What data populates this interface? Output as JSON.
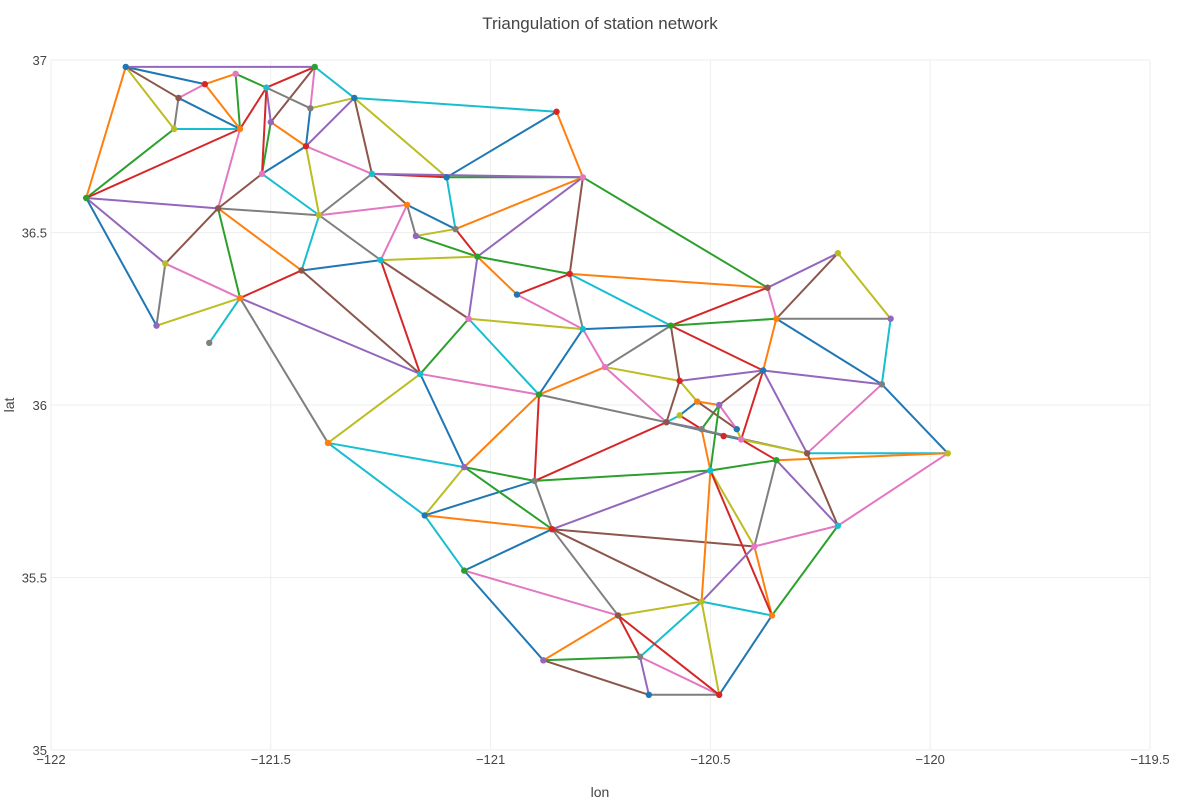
{
  "chart_data": {
    "type": "scatter",
    "title": "Triangulation of station network",
    "xlabel": "lon",
    "ylabel": "lat",
    "xlim": [
      -122,
      -119.5
    ],
    "ylim": [
      35,
      37
    ],
    "xticks": [
      -122,
      -121.5,
      -121,
      -120.5,
      -120,
      -119.5
    ],
    "yticks": [
      35,
      35.5,
      36,
      36.5,
      37
    ],
    "xtick_labels": [
      "−122",
      "−121.5",
      "−121",
      "−120.5",
      "−120",
      "−119.5"
    ],
    "ytick_labels": [
      "35",
      "35.5",
      "36",
      "36.5",
      "37"
    ],
    "grid": true,
    "legend": "none",
    "colors": [
      "#1f77b4",
      "#ff7f0e",
      "#2ca02c",
      "#d62728",
      "#9467bd",
      "#8c564b",
      "#e377c2",
      "#7f7f7f",
      "#bcbd22",
      "#17becf"
    ],
    "stations": [
      [
        -121.83,
        36.98
      ],
      [
        -121.65,
        36.93
      ],
      [
        -121.58,
        36.96
      ],
      [
        -121.51,
        36.92
      ],
      [
        -121.4,
        36.98
      ],
      [
        -121.71,
        36.89
      ],
      [
        -121.72,
        36.8
      ],
      [
        -121.57,
        36.8
      ],
      [
        -121.5,
        36.82
      ],
      [
        -121.41,
        36.86
      ],
      [
        -121.31,
        36.89
      ],
      [
        -121.42,
        36.75
      ],
      [
        -121.52,
        36.67
      ],
      [
        -121.27,
        36.67
      ],
      [
        -121.92,
        36.6
      ],
      [
        -121.62,
        36.57
      ],
      [
        -121.39,
        36.55
      ],
      [
        -121.19,
        36.58
      ],
      [
        -121.17,
        36.49
      ],
      [
        -121.08,
        36.51
      ],
      [
        -121.1,
        36.66
      ],
      [
        -120.85,
        36.85
      ],
      [
        -120.79,
        36.66
      ],
      [
        -121.25,
        36.42
      ],
      [
        -121.03,
        36.43
      ],
      [
        -121.43,
        36.39
      ],
      [
        -121.74,
        36.41
      ],
      [
        -121.57,
        36.31
      ],
      [
        -121.76,
        36.23
      ],
      [
        -121.64,
        36.18
      ],
      [
        -120.94,
        36.32
      ],
      [
        -120.82,
        36.38
      ],
      [
        -121.05,
        36.25
      ],
      [
        -120.79,
        36.22
      ],
      [
        -120.59,
        36.23
      ],
      [
        -120.37,
        36.34
      ],
      [
        -120.21,
        36.44
      ],
      [
        -120.35,
        36.25
      ],
      [
        -120.09,
        36.25
      ],
      [
        -120.11,
        36.06
      ],
      [
        -120.38,
        36.1
      ],
      [
        -120.57,
        36.07
      ],
      [
        -120.74,
        36.11
      ],
      [
        -121.16,
        36.09
      ],
      [
        -120.89,
        36.03
      ],
      [
        -120.6,
        35.95
      ],
      [
        -120.57,
        35.97
      ],
      [
        -120.53,
        36.01
      ],
      [
        -120.48,
        36.0
      ],
      [
        -120.52,
        35.93
      ],
      [
        -120.44,
        35.93
      ],
      [
        -120.47,
        35.91
      ],
      [
        -120.43,
        35.9
      ],
      [
        -120.5,
        35.81
      ],
      [
        -120.35,
        35.84
      ],
      [
        -120.28,
        35.86
      ],
      [
        -119.96,
        35.86
      ],
      [
        -121.37,
        35.89
      ],
      [
        -121.06,
        35.82
      ],
      [
        -120.9,
        35.78
      ],
      [
        -121.15,
        35.68
      ],
      [
        -120.86,
        35.64
      ],
      [
        -120.4,
        35.59
      ],
      [
        -120.21,
        35.65
      ],
      [
        -121.06,
        35.52
      ],
      [
        -120.71,
        35.39
      ],
      [
        -120.52,
        35.43
      ],
      [
        -120.36,
        35.39
      ],
      [
        -120.88,
        35.26
      ],
      [
        -120.66,
        35.27
      ],
      [
        -120.64,
        35.16
      ],
      [
        -120.48,
        35.16
      ]
    ],
    "edges": [
      [
        0,
        1
      ],
      [
        1,
        2
      ],
      [
        2,
        3
      ],
      [
        3,
        4
      ],
      [
        0,
        4
      ],
      [
        0,
        5
      ],
      [
        5,
        1
      ],
      [
        5,
        6
      ],
      [
        0,
        6
      ],
      [
        6,
        7
      ],
      [
        5,
        7
      ],
      [
        1,
        7
      ],
      [
        7,
        2
      ],
      [
        7,
        3
      ],
      [
        3,
        8
      ],
      [
        8,
        4
      ],
      [
        4,
        9
      ],
      [
        3,
        9
      ],
      [
        9,
        10
      ],
      [
        4,
        10
      ],
      [
        9,
        11
      ],
      [
        8,
        11
      ],
      [
        8,
        12
      ],
      [
        12,
        3
      ],
      [
        11,
        10
      ],
      [
        10,
        13
      ],
      [
        11,
        13
      ],
      [
        13,
        16
      ],
      [
        11,
        16
      ],
      [
        12,
        16
      ],
      [
        12,
        11
      ],
      [
        14,
        0
      ],
      [
        14,
        6
      ],
      [
        14,
        7
      ],
      [
        14,
        15
      ],
      [
        15,
        12
      ],
      [
        15,
        7
      ],
      [
        15,
        16
      ],
      [
        10,
        20
      ],
      [
        10,
        21
      ],
      [
        20,
        21
      ],
      [
        21,
        22
      ],
      [
        20,
        22
      ],
      [
        13,
        20
      ],
      [
        13,
        22
      ],
      [
        13,
        17
      ],
      [
        16,
        17
      ],
      [
        17,
        18
      ],
      [
        18,
        19
      ],
      [
        19,
        20
      ],
      [
        17,
        19
      ],
      [
        19,
        22
      ],
      [
        18,
        24
      ],
      [
        19,
        24
      ],
      [
        22,
        24
      ],
      [
        22,
        31
      ],
      [
        17,
        23
      ],
      [
        16,
        23
      ],
      [
        23,
        24
      ],
      [
        16,
        25
      ],
      [
        25,
        23
      ],
      [
        15,
        25
      ],
      [
        15,
        27
      ],
      [
        25,
        27
      ],
      [
        14,
        26
      ],
      [
        26,
        15
      ],
      [
        26,
        27
      ],
      [
        26,
        28
      ],
      [
        28,
        27
      ],
      [
        27,
        29
      ],
      [
        28,
        14
      ],
      [
        24,
        30
      ],
      [
        24,
        31
      ],
      [
        30,
        31
      ],
      [
        24,
        32
      ],
      [
        23,
        32
      ],
      [
        30,
        33
      ],
      [
        31,
        33
      ],
      [
        32,
        33
      ],
      [
        31,
        34
      ],
      [
        33,
        34
      ],
      [
        31,
        35
      ],
      [
        22,
        35
      ],
      [
        34,
        35
      ],
      [
        35,
        36
      ],
      [
        36,
        37
      ],
      [
        35,
        37
      ],
      [
        37,
        38
      ],
      [
        36,
        38
      ],
      [
        38,
        39
      ],
      [
        37,
        39
      ],
      [
        37,
        40
      ],
      [
        34,
        37
      ],
      [
        34,
        40
      ],
      [
        40,
        39
      ],
      [
        34,
        41
      ],
      [
        33,
        42
      ],
      [
        42,
        34
      ],
      [
        42,
        41
      ],
      [
        32,
        44
      ],
      [
        44,
        33
      ],
      [
        44,
        42
      ],
      [
        43,
        32
      ],
      [
        43,
        23
      ],
      [
        27,
        43
      ],
      [
        25,
        43
      ],
      [
        43,
        44
      ],
      [
        27,
        57
      ],
      [
        57,
        43
      ],
      [
        57,
        58
      ],
      [
        43,
        58
      ],
      [
        58,
        44
      ],
      [
        58,
        59
      ],
      [
        44,
        59
      ],
      [
        41,
        40
      ],
      [
        41,
        45
      ],
      [
        42,
        45
      ],
      [
        44,
        45
      ],
      [
        41,
        47
      ],
      [
        45,
        46
      ],
      [
        46,
        47
      ],
      [
        47,
        48
      ],
      [
        48,
        49
      ],
      [
        46,
        49
      ],
      [
        45,
        49
      ],
      [
        47,
        50
      ],
      [
        48,
        50
      ],
      [
        49,
        51
      ],
      [
        50,
        52
      ],
      [
        51,
        52
      ],
      [
        45,
        52
      ],
      [
        49,
        53
      ],
      [
        53,
        48
      ],
      [
        40,
        52
      ],
      [
        40,
        55
      ],
      [
        40,
        48
      ],
      [
        39,
        55
      ],
      [
        45,
        55
      ],
      [
        52,
        55
      ],
      [
        55,
        56
      ],
      [
        39,
        56
      ],
      [
        54,
        56
      ],
      [
        53,
        54
      ],
      [
        52,
        54
      ],
      [
        54,
        63
      ],
      [
        55,
        63
      ],
      [
        63,
        56
      ],
      [
        59,
        61
      ],
      [
        58,
        60
      ],
      [
        57,
        60
      ],
      [
        60,
        59
      ],
      [
        60,
        61
      ],
      [
        59,
        53
      ],
      [
        45,
        59
      ],
      [
        61,
        53
      ],
      [
        61,
        62
      ],
      [
        62,
        63
      ],
      [
        62,
        54
      ],
      [
        53,
        62
      ],
      [
        60,
        64
      ],
      [
        61,
        64
      ],
      [
        62,
        67
      ],
      [
        63,
        67
      ],
      [
        53,
        67
      ],
      [
        62,
        66
      ],
      [
        61,
        66
      ],
      [
        64,
        65
      ],
      [
        61,
        65
      ],
      [
        65,
        66
      ],
      [
        66,
        67
      ],
      [
        64,
        68
      ],
      [
        65,
        68
      ],
      [
        68,
        69
      ],
      [
        65,
        69
      ],
      [
        69,
        70
      ],
      [
        68,
        70
      ],
      [
        69,
        71
      ],
      [
        70,
        71
      ],
      [
        66,
        71
      ],
      [
        66,
        69
      ],
      [
        67,
        71
      ],
      [
        66,
        53
      ],
      [
        58,
        61
      ],
      [
        65,
        71
      ]
    ]
  }
}
